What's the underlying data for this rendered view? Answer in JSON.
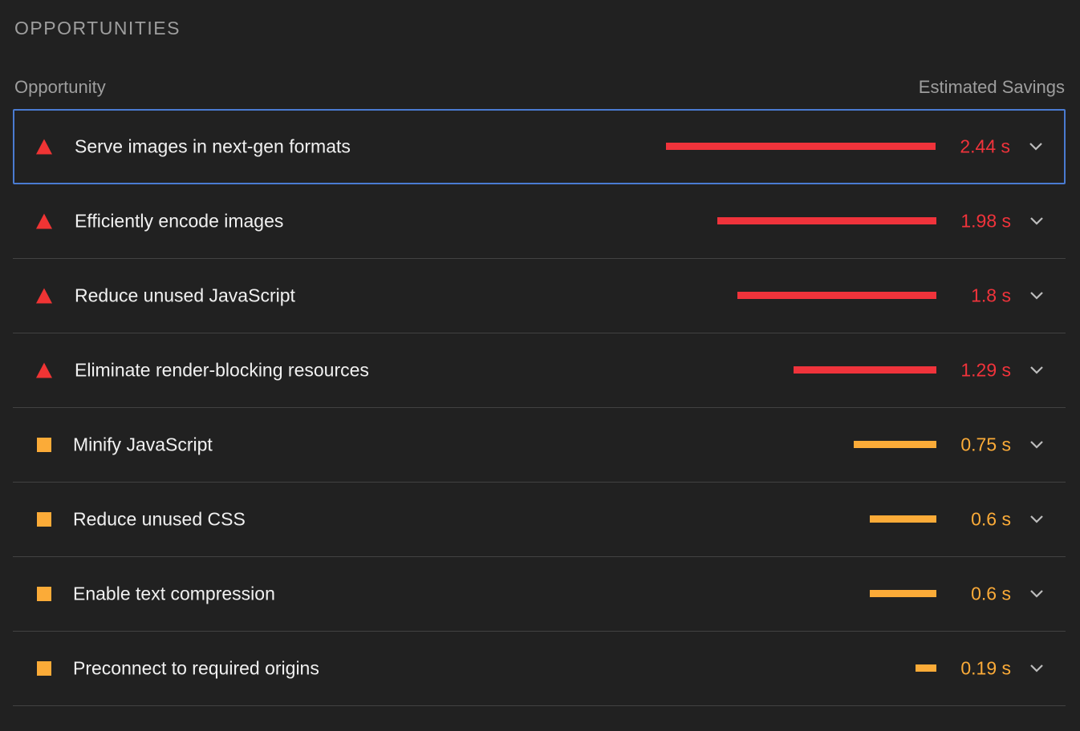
{
  "section": {
    "title": "OPPORTUNITIES"
  },
  "headers": {
    "opportunity": "Opportunity",
    "savings": "Estimated Savings"
  },
  "colors": {
    "fail": "#f0333b",
    "average": "#fbab38",
    "focus": "#4a7bd1"
  },
  "max_savings_s": 2.44,
  "items": [
    {
      "title": "Serve images in next-gen formats",
      "savings": "2.44 s",
      "savings_s": 2.44,
      "rating": "fail",
      "icon": "red-triangle-icon"
    },
    {
      "title": "Efficiently encode images",
      "savings": "1.98 s",
      "savings_s": 1.98,
      "rating": "fail",
      "icon": "red-triangle-icon"
    },
    {
      "title": "Reduce unused JavaScript",
      "savings": "1.8 s",
      "savings_s": 1.8,
      "rating": "fail",
      "icon": "red-triangle-icon"
    },
    {
      "title": "Eliminate render-blocking resources",
      "savings": "1.29 s",
      "savings_s": 1.29,
      "rating": "fail",
      "icon": "red-triangle-icon"
    },
    {
      "title": "Minify JavaScript",
      "savings": "0.75 s",
      "savings_s": 0.75,
      "rating": "average",
      "icon": "orange-square-icon"
    },
    {
      "title": "Reduce unused CSS",
      "savings": "0.6 s",
      "savings_s": 0.6,
      "rating": "average",
      "icon": "orange-square-icon"
    },
    {
      "title": "Enable text compression",
      "savings": "0.6 s",
      "savings_s": 0.6,
      "rating": "average",
      "icon": "orange-square-icon"
    },
    {
      "title": "Preconnect to required origins",
      "savings": "0.19 s",
      "savings_s": 0.19,
      "rating": "average",
      "icon": "orange-square-icon"
    }
  ]
}
